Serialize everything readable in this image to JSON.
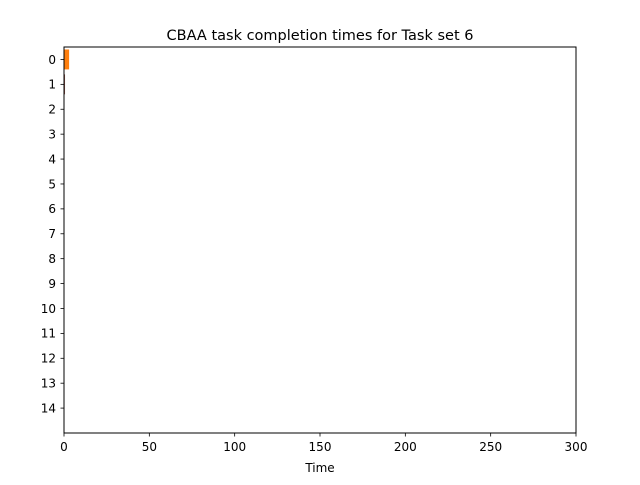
{
  "chart_data": {
    "type": "bar",
    "orientation": "horizontal",
    "title": "CBAA task completion times for Task set 6",
    "xlabel": "Time",
    "ylabel": "",
    "xlim": [
      0,
      300
    ],
    "ylim": [
      -0.5,
      15
    ],
    "y_inverted": true,
    "xticks": [
      0,
      50,
      100,
      150,
      200,
      250,
      300
    ],
    "categories": [
      "0",
      "1",
      "2",
      "3",
      "4",
      "5",
      "6",
      "7",
      "8",
      "9",
      "10",
      "11",
      "12",
      "13",
      "14"
    ],
    "bars": [
      {
        "category": "0",
        "start": 0,
        "value": 3,
        "color": "#ff7f0e"
      },
      {
        "category": "1",
        "start": 0,
        "value": 0.6,
        "color": "#8c564b"
      }
    ],
    "grid": false,
    "legend": "none"
  }
}
